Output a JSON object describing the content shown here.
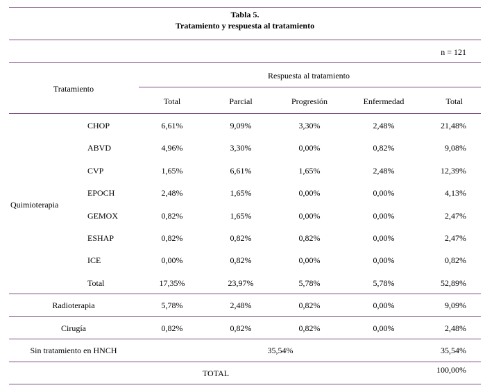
{
  "table": {
    "title": "Tabla 5.",
    "subtitle": "Tratamiento y respuesta al tratamiento",
    "n_label": "n = 121",
    "row_header": "Tratamiento",
    "response_header": "Respuesta al tratamiento",
    "columns": [
      "Total",
      "Parcial",
      "Progresión",
      "Enfermedad",
      "Total"
    ],
    "quimio_label": "Quimioterapia",
    "quimio_rows": [
      {
        "name": "CHOP",
        "values": [
          "6,61%",
          "9,09%",
          "3,30%",
          "2,48%",
          "21,48%"
        ]
      },
      {
        "name": "ABVD",
        "values": [
          "4,96%",
          "3,30%",
          "0,00%",
          "0,82%",
          "9,08%"
        ]
      },
      {
        "name": "CVP",
        "values": [
          "1,65%",
          "6,61%",
          "1,65%",
          "2,48%",
          "12,39%"
        ]
      },
      {
        "name": "EPOCH",
        "values": [
          "2,48%",
          "1,65%",
          "0,00%",
          "0,00%",
          "4,13%"
        ]
      },
      {
        "name": "GEMOX",
        "values": [
          "0,82%",
          "1,65%",
          "0,00%",
          "0,00%",
          "2,47%"
        ]
      },
      {
        "name": "ESHAP",
        "values": [
          "0,82%",
          "0,82%",
          "0,82%",
          "0,00%",
          "2,47%"
        ]
      },
      {
        "name": "ICE",
        "values": [
          "0,00%",
          "0,82%",
          "0,00%",
          "0,00%",
          "0,82%"
        ]
      },
      {
        "name": "Total",
        "values": [
          "17,35%",
          "23,97%",
          "5,78%",
          "5,78%",
          "52,89%"
        ]
      }
    ],
    "radioterapia": {
      "name": "Radioterapia",
      "values": [
        "5,78%",
        "2,48%",
        "0,82%",
        "0,00%",
        "9,09%"
      ]
    },
    "cirugia": {
      "name": "Cirugía",
      "values": [
        "0,82%",
        "0,82%",
        "0,82%",
        "0,00%",
        "2,48%"
      ]
    },
    "sin_tratamiento": {
      "name": "Sin tratamiento en HNCH",
      "merged": "35,54%",
      "total": "35,54%"
    },
    "total_row": {
      "name": "TOTAL",
      "total": "100,00%"
    }
  }
}
